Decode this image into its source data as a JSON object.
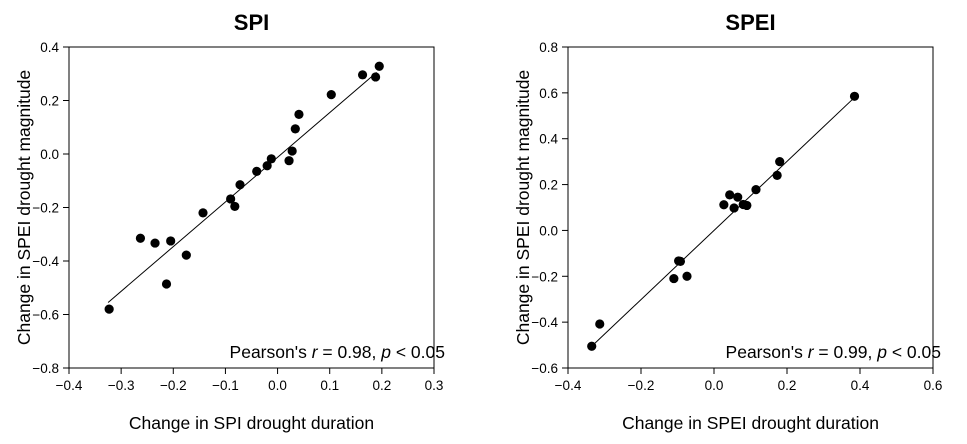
{
  "chart_data": [
    {
      "type": "scatter",
      "title": "SPI",
      "xlabel": "Change in SPI drought duration",
      "ylabel": "Change in SPEI drought magnitude",
      "xlim": [
        -0.4,
        0.3
      ],
      "ylim": [
        -0.8,
        0.4
      ],
      "xticks": [
        "−0.4",
        "−0.3",
        "−0.2",
        "−0.1",
        "0.0",
        "0.1",
        "0.2",
        "0.3"
      ],
      "yticks": [
        "−0.8",
        "−0.6",
        "−0.4",
        "−0.2",
        "0.0",
        "0.2",
        "0.4"
      ],
      "grid": false,
      "fit_line": {
        "x": [
          -0.325,
          0.19
        ],
        "y": [
          -0.555,
          0.305
        ]
      },
      "annotation": {
        "prefix": "Pearson's ",
        "r_symbol": "r",
        "r_text": " = 0.98, ",
        "p_symbol": "p",
        "p_text": " < 0.05"
      },
      "points": [
        {
          "x": -0.323,
          "y": -0.58
        },
        {
          "x": -0.263,
          "y": -0.315
        },
        {
          "x": -0.235,
          "y": -0.333
        },
        {
          "x": -0.205,
          "y": -0.325
        },
        {
          "x": -0.213,
          "y": -0.486
        },
        {
          "x": -0.175,
          "y": -0.378
        },
        {
          "x": -0.143,
          "y": -0.22
        },
        {
          "x": -0.09,
          "y": -0.168
        },
        {
          "x": -0.082,
          "y": -0.196
        },
        {
          "x": -0.072,
          "y": -0.115
        },
        {
          "x": -0.04,
          "y": -0.065
        },
        {
          "x": -0.02,
          "y": -0.044
        },
        {
          "x": -0.012,
          "y": -0.018
        },
        {
          "x": 0.022,
          "y": -0.025
        },
        {
          "x": 0.028,
          "y": 0.011
        },
        {
          "x": 0.034,
          "y": 0.094
        },
        {
          "x": 0.041,
          "y": 0.148
        },
        {
          "x": 0.103,
          "y": 0.222
        },
        {
          "x": 0.163,
          "y": 0.296
        },
        {
          "x": 0.188,
          "y": 0.288
        },
        {
          "x": 0.195,
          "y": 0.328
        }
      ]
    },
    {
      "type": "scatter",
      "title": "SPEI",
      "xlabel": "Change in SPEI drought duration",
      "ylabel": "Change in SPEI drought magnitude",
      "xlim": [
        -0.4,
        0.6
      ],
      "ylim": [
        -0.6,
        0.8
      ],
      "xticks": [
        "−0.4",
        "−0.2",
        "0.0",
        "0.2",
        "0.4",
        "0.6"
      ],
      "yticks": [
        "−0.6",
        "−0.4",
        "−0.2",
        "0.0",
        "0.2",
        "0.4",
        "0.6",
        "0.8"
      ],
      "grid": false,
      "fit_line": {
        "x": [
          -0.335,
          0.385
        ],
        "y": [
          -0.505,
          0.58
        ]
      },
      "annotation": {
        "prefix": "Pearson's ",
        "r_symbol": "r",
        "r_text": " = 0.99, ",
        "p_symbol": "p",
        "p_text": " < 0.05"
      },
      "points": [
        {
          "x": -0.335,
          "y": -0.505
        },
        {
          "x": -0.313,
          "y": -0.408
        },
        {
          "x": -0.11,
          "y": -0.21
        },
        {
          "x": -0.097,
          "y": -0.133
        },
        {
          "x": -0.092,
          "y": -0.135
        },
        {
          "x": -0.074,
          "y": -0.2
        },
        {
          "x": 0.027,
          "y": 0.112
        },
        {
          "x": 0.043,
          "y": 0.155
        },
        {
          "x": 0.055,
          "y": 0.098
        },
        {
          "x": 0.065,
          "y": 0.145
        },
        {
          "x": 0.08,
          "y": 0.113
        },
        {
          "x": 0.09,
          "y": 0.109
        },
        {
          "x": 0.115,
          "y": 0.178
        },
        {
          "x": 0.173,
          "y": 0.24
        },
        {
          "x": 0.18,
          "y": 0.3
        },
        {
          "x": 0.385,
          "y": 0.585
        }
      ]
    }
  ]
}
